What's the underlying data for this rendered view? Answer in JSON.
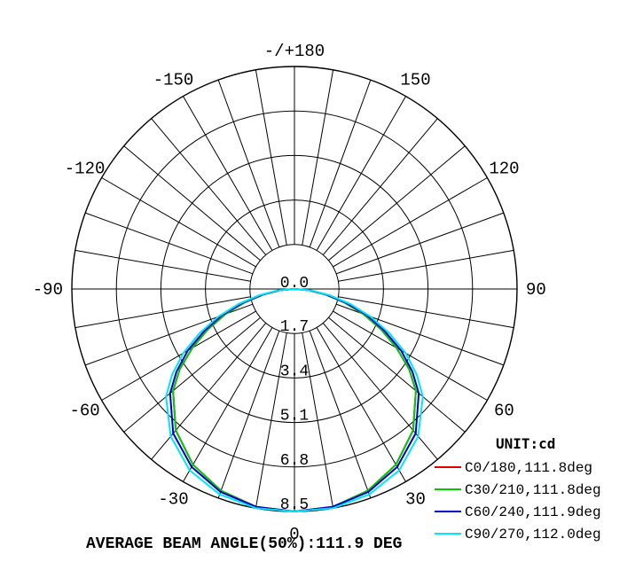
{
  "chart_data": {
    "type": "polar",
    "unit_label": "UNIT:cd",
    "radial_ticks": [
      "0.0",
      "1.7",
      "3.4",
      "5.1",
      "6.8",
      "8.5"
    ],
    "radial_max": 8.5,
    "angle_labels": [
      {
        "angle": 0,
        "text": "0"
      },
      {
        "angle": 30,
        "text": "30"
      },
      {
        "angle": -30,
        "text": "-30"
      },
      {
        "angle": 60,
        "text": "60"
      },
      {
        "angle": -60,
        "text": "-60"
      },
      {
        "angle": 90,
        "text": "90"
      },
      {
        "angle": -90,
        "text": "-90"
      },
      {
        "angle": 120,
        "text": "120"
      },
      {
        "angle": -120,
        "text": "-120"
      },
      {
        "angle": 150,
        "text": "150"
      },
      {
        "angle": -150,
        "text": "-150"
      },
      {
        "angle": 180,
        "text": "-/+180"
      }
    ],
    "series": [
      {
        "name": "C0/180,111.8deg",
        "color": "#e00000",
        "angles": [
          0,
          10,
          20,
          30,
          40,
          50,
          55,
          60,
          65,
          70,
          75,
          80,
          85,
          90
        ],
        "values": [
          8.5,
          8.45,
          8.2,
          7.75,
          7.05,
          6.05,
          5.35,
          4.5,
          3.65,
          2.8,
          1.95,
          1.2,
          0.55,
          0.0
        ]
      },
      {
        "name": "C30/210,111.8deg",
        "color": "#00cc00",
        "angles": [
          0,
          10,
          20,
          30,
          40,
          50,
          55,
          60,
          65,
          70,
          75,
          80,
          85,
          90
        ],
        "values": [
          8.5,
          8.45,
          8.2,
          7.75,
          7.05,
          6.05,
          5.35,
          4.5,
          3.65,
          2.8,
          1.95,
          1.2,
          0.55,
          0.0
        ]
      },
      {
        "name": "C60/240,111.9deg",
        "color": "#0000cc",
        "angles": [
          0,
          10,
          20,
          30,
          40,
          50,
          55,
          60,
          65,
          70,
          75,
          80,
          85,
          90
        ],
        "values": [
          8.5,
          8.45,
          8.25,
          7.85,
          7.2,
          6.2,
          5.5,
          4.7,
          3.8,
          2.95,
          2.05,
          1.25,
          0.6,
          0.0
        ]
      },
      {
        "name": "C90/270,112.0deg",
        "color": "#00e5ff",
        "angles": [
          0,
          10,
          20,
          30,
          40,
          50,
          55,
          60,
          65,
          70,
          75,
          80,
          85,
          90
        ],
        "values": [
          8.5,
          8.5,
          8.35,
          8.0,
          7.35,
          6.4,
          5.7,
          4.9,
          4.0,
          3.1,
          2.2,
          1.35,
          0.65,
          0.0
        ]
      }
    ]
  },
  "footer_text": "AVERAGE BEAM ANGLE(50%):111.9 DEG"
}
